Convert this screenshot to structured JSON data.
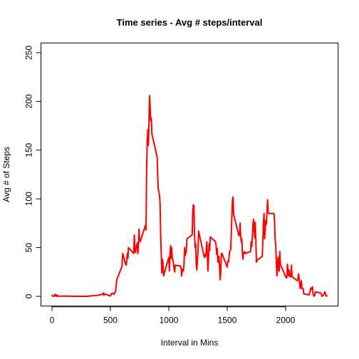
{
  "chart_data": {
    "type": "line",
    "title": "Time series - Avg # steps/interval",
    "x_label": "Interval in Mins",
    "y_label": "Avg # of Steps",
    "xlim": [
      -94.2,
      2449.2
    ],
    "xticks": [
      0,
      500,
      1000,
      1500,
      2000
    ],
    "ylim": [
      -10,
      260
    ],
    "yticks": [
      0,
      50,
      100,
      150,
      200,
      250
    ],
    "x": [
      0,
      5,
      10,
      15,
      20,
      25,
      30,
      35,
      40,
      45,
      50,
      55,
      100,
      200,
      300,
      400,
      430,
      440,
      445,
      450,
      500,
      510,
      520,
      530,
      540,
      545,
      550,
      555,
      600,
      605,
      615,
      625,
      635,
      640,
      645,
      650,
      655,
      700,
      705,
      710,
      715,
      720,
      730,
      735,
      740,
      745,
      750,
      755,
      800,
      805,
      810,
      815,
      820,
      825,
      830,
      835,
      840,
      845,
      850,
      855,
      900,
      905,
      910,
      915,
      920,
      925,
      930,
      935,
      940,
      945,
      950,
      955,
      1000,
      1005,
      1010,
      1015,
      1020,
      1025,
      1030,
      1035,
      1040,
      1045,
      1050,
      1055,
      1100,
      1105,
      1110,
      1115,
      1120,
      1125,
      1130,
      1135,
      1140,
      1145,
      1150,
      1155,
      1200,
      1205,
      1210,
      1215,
      1220,
      1225,
      1230,
      1235,
      1240,
      1245,
      1250,
      1255,
      1300,
      1305,
      1310,
      1315,
      1320,
      1325,
      1330,
      1335,
      1340,
      1345,
      1350,
      1355,
      1400,
      1405,
      1410,
      1415,
      1420,
      1425,
      1430,
      1435,
      1440,
      1445,
      1450,
      1455,
      1500,
      1505,
      1510,
      1515,
      1520,
      1525,
      1530,
      1535,
      1540,
      1545,
      1550,
      1555,
      1600,
      1605,
      1610,
      1615,
      1620,
      1625,
      1630,
      1635,
      1640,
      1645,
      1650,
      1655,
      1700,
      1705,
      1710,
      1715,
      1720,
      1725,
      1730,
      1735,
      1740,
      1745,
      1750,
      1755,
      1800,
      1805,
      1810,
      1815,
      1820,
      1825,
      1830,
      1835,
      1840,
      1845,
      1850,
      1855,
      1900,
      1905,
      1910,
      1915,
      1920,
      1925,
      1930,
      1935,
      1940,
      1945,
      1950,
      1955,
      2000,
      2005,
      2010,
      2015,
      2020,
      2025,
      2030,
      2035,
      2040,
      2045,
      2050,
      2055,
      2100,
      2105,
      2110,
      2115,
      2120,
      2125,
      2130,
      2135,
      2140,
      2145,
      2150,
      2155,
      2200,
      2205,
      2210,
      2215,
      2220,
      2225,
      2230,
      2235,
      2240,
      2245,
      2250,
      2255,
      2300,
      2305,
      2310,
      2315,
      2320,
      2325,
      2330,
      2335,
      2340,
      2345,
      2350,
      2355
    ],
    "series": [
      {
        "color": "#ff0000",
        "values": [
          1.7,
          0.3,
          0.1,
          0.2,
          0.1,
          2.1,
          0.5,
          0.9,
          0,
          1.5,
          0.3,
          0.1,
          0.3,
          0,
          0,
          1.2,
          2,
          3.5,
          1,
          2.5,
          0.3,
          3,
          3.3,
          2,
          4,
          5,
          12,
          17,
          31,
          44,
          40,
          35,
          32,
          37,
          44,
          39,
          50,
          44,
          63,
          50,
          45,
          49,
          55,
          44,
          52,
          69,
          58,
          56,
          73,
          68,
          129,
          158,
          171,
          155,
          177,
          206,
          196,
          180,
          183,
          167,
          143,
          124,
          109,
          108,
          104,
          96,
          66,
          45,
          24,
          38,
          34,
          21,
          40,
          26,
          43,
          52,
          39,
          50,
          38,
          37,
          34,
          28,
          25,
          32,
          31,
          29,
          21,
          26,
          28,
          26,
          33,
          50,
          42,
          44,
          46,
          59,
          63,
          87,
          94,
          93,
          64,
          50,
          54,
          33,
          27,
          38,
          46,
          67,
          42,
          40,
          43,
          41,
          46,
          56,
          43,
          26,
          40,
          54,
          47,
          61,
          56,
          52,
          43,
          49,
          35,
          37,
          41,
          28,
          17,
          26,
          44,
          44,
          30,
          36,
          35,
          39,
          46,
          47,
          48,
          65,
          83,
          99,
          102,
          84,
          62,
          64,
          75,
          63,
          56,
          59,
          44,
          38,
          44,
          45,
          46,
          44,
          46,
          56,
          51,
          61,
          73,
          79,
          69,
          60,
          76,
          57,
          35,
          37,
          41,
          58,
          75,
          85,
          59,
          68,
          78,
          74,
          85,
          99,
          87,
          85,
          85,
          78,
          58,
          53,
          37,
          21,
          27,
          40,
          30,
          26,
          46,
          33,
          20,
          19,
          19,
          33,
          27,
          21,
          27,
          21,
          20,
          21,
          32,
          20,
          16,
          17,
          23,
          19,
          12,
          8,
          14,
          16,
          8,
          8,
          8,
          2.6,
          1.5,
          3.7,
          4.8,
          8.5,
          7.1,
          8.7,
          9.8,
          2.2,
          0.3,
          0.1,
          1.6,
          4.6,
          3.3,
          2.8,
          0,
          0.8,
          1,
          1.6,
          2.6,
          4.7,
          3.3,
          0.6,
          0.2,
          1.1
        ]
      }
    ]
  }
}
